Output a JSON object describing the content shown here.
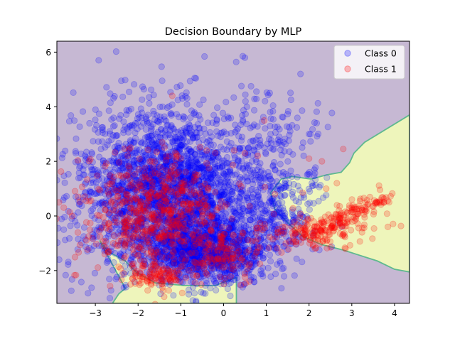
{
  "chart_data": {
    "type": "scatter",
    "title": "Decision Boundary by MLP",
    "xlabel": "",
    "ylabel": "",
    "xlim": [
      -3.9,
      4.35
    ],
    "ylim": [
      -3.2,
      6.4
    ],
    "xticks": [
      -3,
      -2,
      -1,
      0,
      1,
      2,
      3,
      4
    ],
    "yticks": [
      -2,
      0,
      2,
      4,
      6
    ],
    "grid": false,
    "legend_position": "top-right",
    "decision_regions": [
      {
        "class": "Class 0",
        "color": "#c6b8d3"
      },
      {
        "class": "Class 1",
        "color": "#eef5bb"
      }
    ],
    "class1_region_polygons": [
      [
        [
          4.35,
          3.7
        ],
        [
          3.3,
          2.7
        ],
        [
          3.05,
          2.3
        ],
        [
          2.95,
          1.95
        ],
        [
          2.75,
          1.6
        ],
        [
          2.4,
          1.5
        ],
        [
          2.05,
          1.35
        ],
        [
          1.6,
          1.45
        ],
        [
          1.35,
          1.35
        ],
        [
          1.1,
          0.85
        ],
        [
          1.2,
          0.25
        ],
        [
          1.5,
          -0.25
        ],
        [
          1.85,
          -0.75
        ],
        [
          2.3,
          -1.05
        ],
        [
          2.8,
          -1.25
        ],
        [
          3.2,
          -1.45
        ],
        [
          3.6,
          -1.65
        ],
        [
          4.0,
          -1.95
        ],
        [
          4.35,
          -2.05
        ]
      ],
      [
        [
          -2.9,
          -0.9
        ],
        [
          -2.7,
          -1.3
        ],
        [
          -2.3,
          -1.65
        ],
        [
          -2.05,
          -2.05
        ],
        [
          -1.6,
          -2.45
        ],
        [
          -0.9,
          -2.55
        ],
        [
          -0.2,
          -2.55
        ],
        [
          0.3,
          -2.25
        ],
        [
          0.3,
          -3.2
        ],
        [
          -2.6,
          -3.2
        ],
        [
          -2.45,
          -2.85
        ],
        [
          -2.3,
          -2.65
        ]
      ]
    ],
    "series": [
      {
        "name": "Class 0",
        "color": "#0000ff",
        "clusters": [
          {
            "cx": -1.2,
            "cy": 0.8,
            "sx": 1.1,
            "sy": 1.5,
            "n": 2600
          },
          {
            "cx": -0.4,
            "cy": -1.3,
            "sx": 0.7,
            "sy": 0.55,
            "n": 900
          },
          {
            "cx": 1.3,
            "cy": 0.2,
            "sx": 0.55,
            "sy": 0.9,
            "n": 250
          },
          {
            "cx": 1.2,
            "cy": 3.0,
            "sx": 0.6,
            "sy": 0.9,
            "n": 90
          }
        ],
        "extra_points": [
          [
            0.45,
            5.85
          ],
          [
            0.5,
            5.8
          ],
          [
            1.8,
            5.2
          ],
          [
            2.0,
            3.0
          ]
        ]
      },
      {
        "name": "Class 1",
        "color": "#ff0000",
        "clusters": [
          {
            "cx": -1.6,
            "cy": 0.0,
            "sx": 0.85,
            "sy": 1.1,
            "n": 650
          },
          {
            "cx": -1.6,
            "cy": -2.2,
            "sx": 0.3,
            "sy": 0.2,
            "n": 90
          },
          {
            "cx": 0.0,
            "cy": -1.4,
            "sx": 0.4,
            "sy": 0.5,
            "n": 120
          },
          {
            "cx": 2.2,
            "cy": -0.6,
            "sx": 0.7,
            "sy": 0.35,
            "n": 120
          }
        ],
        "band": {
          "x0": 1.7,
          "y0": -0.9,
          "x1": 3.9,
          "y1": 0.75,
          "spread": 0.18,
          "n": 170
        },
        "extra_points": [
          [
            -1.2,
            4.4
          ],
          [
            0.95,
            3.5
          ],
          [
            1.85,
            0.85
          ],
          [
            2.4,
            1.0
          ],
          [
            2.65,
            1.2
          ],
          [
            2.0,
            2.1
          ],
          [
            2.3,
            2.0
          ],
          [
            0.5,
            2.3
          ],
          [
            0.25,
            2.4
          ],
          [
            2.8,
            2.45
          ],
          [
            2.7,
            0.2
          ],
          [
            1.2,
            0.8
          ],
          [
            0.8,
            2.2
          ]
        ]
      }
    ]
  },
  "legend": [
    {
      "label": "Class 0",
      "color": "#0000ff"
    },
    {
      "label": "Class 1",
      "color": "#ff0000"
    }
  ]
}
